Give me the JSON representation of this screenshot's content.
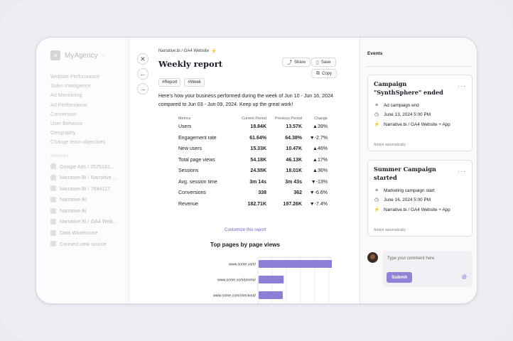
{
  "sidebar": {
    "brand": "MyAgency",
    "brand_caret": "·",
    "items": [
      "Website Performance",
      "Sales Intelligence",
      "Ad Monitoring",
      "Ad Performance",
      "Conversion",
      "User Behavior",
      "Geography",
      "Change team objectives"
    ],
    "section_label": "Sources",
    "sources": [
      "Google Ads / 2575161...",
      "Narrative.Bi / Narrative ...",
      "Narrative.Bi / 7644117",
      "Narrative.BI",
      "Narrative.Bi",
      "Narrative.Bi / GA4 Web...",
      "Data Warehouse",
      "Connect new source"
    ]
  },
  "report": {
    "breadcrumb": "Narrative.bi / GA4 Website",
    "title": "Weekly report",
    "share": "Share",
    "save": "Save",
    "copy": "Copy",
    "tags": [
      "#Report",
      "#Week"
    ],
    "intro": "Here's how your business performed during the week of Jun 10 - Jun 16, 2024 compared to Jun 03 - Jun 09, 2024. Keep up the great work!",
    "table": {
      "headers": [
        "Metrics",
        "Current Period",
        "Previous Period",
        "Change"
      ],
      "rows": [
        {
          "metric": "Users",
          "current": "18.84K",
          "previous": "13.57K",
          "change": "39%",
          "dir": "up"
        },
        {
          "metric": "Engagement rate",
          "current": "61.64%",
          "previous": "64.38%",
          "change": "-2.7%",
          "dir": "down"
        },
        {
          "metric": "New users",
          "current": "15.33K",
          "previous": "10.47K",
          "change": "46%",
          "dir": "up"
        },
        {
          "metric": "Total page views",
          "current": "54.18K",
          "previous": "46.13K",
          "change": "17%",
          "dir": "up"
        },
        {
          "metric": "Sessions",
          "current": "24.55K",
          "previous": "18.01K",
          "change": "36%",
          "dir": "up"
        },
        {
          "metric": "Avg. session time",
          "current": "3m 14s",
          "previous": "3m 43s",
          "change": "-13%",
          "dir": "down"
        },
        {
          "metric": "Conversions",
          "current": "338",
          "previous": "362",
          "change": "-6.6%",
          "dir": "down"
        },
        {
          "metric": "Revenue",
          "current": "182.71K",
          "previous": "197.26K",
          "change": "-7.4%",
          "dir": "down"
        }
      ]
    },
    "customize": "Customize this report"
  },
  "chart_data": {
    "type": "bar",
    "orientation": "horizontal",
    "title": "Top pages by page views",
    "categories": [
      "www.some.com/",
      "www.some.com/promo/",
      "www.some.com/checkout/"
    ],
    "values": [
      100,
      26,
      25
    ],
    "xlim": [
      0,
      103
    ],
    "grid": true,
    "bar_color": "#8b80d6"
  },
  "events": {
    "heading": "Events",
    "cards": [
      {
        "title": "Campaign \"SynthSphere\" ended",
        "type": "Ad campaign end",
        "date": "June 13, 2024 5:00 PM",
        "source": "Narrative.bi / GA4 Website + App",
        "added": "Added automatically"
      },
      {
        "title": "Summer Campaign started",
        "type": "Marketing campaign start",
        "date": "June 16, 2024 5:00 PM",
        "source": "Narrative.bi / GA4 Website + App",
        "added": "Added automatically"
      }
    ],
    "comment_placeholder": "Type your comment here",
    "submit": "Submit"
  },
  "icons": {
    "close": "close-icon",
    "back": "arrow-left-icon",
    "forward": "arrow-right-icon",
    "share": "share-icon",
    "save": "bookmark-icon",
    "copy": "copy-icon",
    "spark": "spark-icon",
    "more": "more-dots-icon",
    "list": "list-icon",
    "clock": "clock-icon",
    "at": "at-icon"
  },
  "colors": {
    "accent": "#8f83d8",
    "up": "#2aa86a",
    "down": "#e1524d"
  }
}
